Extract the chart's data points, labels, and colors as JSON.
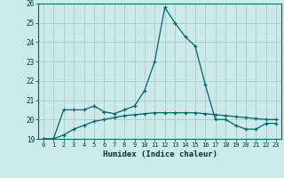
{
  "xlabel": "Humidex (Indice chaleur)",
  "background_color": "#cceaea",
  "grid_color": "#aacccc",
  "line_color": "#006666",
  "xlim": [
    -0.5,
    23.5
  ],
  "ylim": [
    19,
    26
  ],
  "yticks": [
    19,
    20,
    21,
    22,
    23,
    24,
    25,
    26
  ],
  "xticks": [
    0,
    1,
    2,
    3,
    4,
    5,
    6,
    7,
    8,
    9,
    10,
    11,
    12,
    13,
    14,
    15,
    16,
    17,
    18,
    19,
    20,
    21,
    22,
    23
  ],
  "line1_x": [
    0,
    1,
    2,
    3,
    4,
    5,
    6,
    7,
    8,
    9,
    10,
    11,
    12,
    13,
    14,
    15,
    16,
    17,
    18,
    19,
    20,
    21,
    22,
    23
  ],
  "line1_y": [
    19.0,
    19.0,
    20.5,
    20.5,
    20.5,
    20.7,
    20.4,
    20.3,
    20.5,
    20.7,
    21.5,
    23.0,
    25.8,
    25.0,
    24.3,
    23.8,
    21.8,
    20.0,
    20.0,
    19.7,
    19.5,
    19.5,
    19.8,
    19.8
  ],
  "line2_x": [
    0,
    1,
    2,
    3,
    4,
    5,
    6,
    7,
    8,
    9,
    10,
    11,
    12,
    13,
    14,
    15,
    16,
    17,
    18,
    19,
    20,
    21,
    22,
    23
  ],
  "line2_y": [
    19.0,
    19.0,
    19.2,
    19.5,
    19.7,
    19.9,
    20.0,
    20.1,
    20.2,
    20.25,
    20.3,
    20.35,
    20.35,
    20.35,
    20.35,
    20.35,
    20.3,
    20.25,
    20.2,
    20.15,
    20.1,
    20.05,
    20.0,
    20.0
  ]
}
